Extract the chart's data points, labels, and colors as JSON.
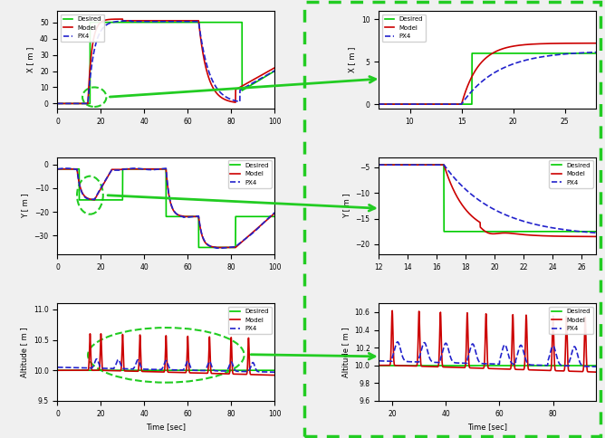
{
  "fig_bg": "#f0f0f0",
  "left_bg": "#ffffff",
  "right_border_color": "#22cc22",
  "desired_color": "#00cc00",
  "model_color": "#cc0000",
  "px4_color": "#2222cc",
  "ellipse_color": "#22cc22",
  "ylabel_x": "X [ m ]",
  "ylabel_y": "Y [ m ]",
  "ylabel_alt": "Altitude [ m ]",
  "xlabel": "Time [sec]"
}
